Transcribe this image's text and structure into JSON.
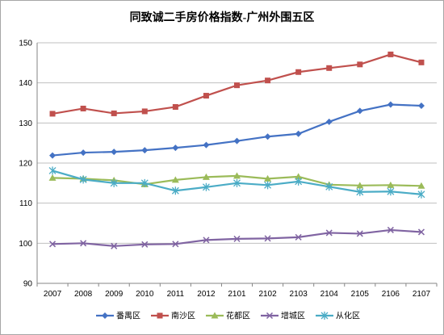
{
  "chart_data": {
    "type": "line",
    "title": "同致诚二手房价格指数-广州外围五区",
    "xlabel": "",
    "ylabel": "",
    "ylim": [
      90,
      150
    ],
    "yticks": [
      90,
      100,
      110,
      120,
      130,
      140,
      150
    ],
    "grid": "horizontal",
    "legend": "bottom",
    "categories": [
      "2007",
      "2008",
      "2009",
      "2010",
      "2011",
      "2012",
      "2101",
      "2102",
      "2103",
      "2104",
      "2105",
      "2106",
      "2107"
    ],
    "series": [
      {
        "name": "番禺区",
        "color": "#4472c4",
        "marker": "diamond",
        "values": [
          121.9,
          122.6,
          122.8,
          123.2,
          123.8,
          124.5,
          125.5,
          126.6,
          127.3,
          130.3,
          133.0,
          134.6,
          134.3
        ]
      },
      {
        "name": "南沙区",
        "color": "#c0504d",
        "marker": "square",
        "values": [
          132.3,
          133.6,
          132.4,
          132.9,
          134.0,
          136.8,
          139.4,
          140.6,
          142.7,
          143.7,
          144.6,
          147.1,
          145.1
        ]
      },
      {
        "name": "花都区",
        "color": "#9bbb59",
        "marker": "triangle",
        "values": [
          116.3,
          116.1,
          115.7,
          114.7,
          115.8,
          116.5,
          116.8,
          116.1,
          116.6,
          114.6,
          114.4,
          114.5,
          114.3
        ]
      },
      {
        "name": "增城区",
        "color": "#8064a2",
        "marker": "x",
        "values": [
          99.8,
          100.0,
          99.3,
          99.7,
          99.8,
          100.8,
          101.1,
          101.2,
          101.5,
          102.6,
          102.4,
          103.3,
          102.8
        ]
      },
      {
        "name": "从化区",
        "color": "#4bacc6",
        "marker": "star",
        "values": [
          118.1,
          115.9,
          115.0,
          115.0,
          113.1,
          114.0,
          115.0,
          114.5,
          115.4,
          114.1,
          112.8,
          112.9,
          112.2
        ]
      }
    ]
  }
}
